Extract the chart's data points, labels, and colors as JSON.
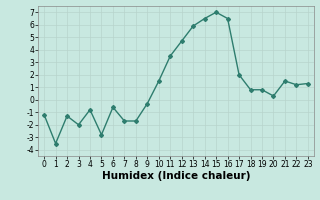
{
  "x": [
    0,
    1,
    2,
    3,
    4,
    5,
    6,
    7,
    8,
    9,
    10,
    11,
    12,
    13,
    14,
    15,
    16,
    17,
    18,
    19,
    20,
    21,
    22,
    23
  ],
  "y": [
    -1.2,
    -3.5,
    -1.3,
    -2.0,
    -0.8,
    -2.8,
    -0.6,
    -1.7,
    -1.7,
    -0.3,
    1.5,
    3.5,
    4.7,
    5.9,
    6.5,
    7.0,
    6.5,
    2.0,
    0.8,
    0.8,
    0.3,
    1.5,
    1.2,
    1.3
  ],
  "line_color": "#2e7d6e",
  "marker": "D",
  "marker_size": 2,
  "background_color": "#c8e8e0",
  "grid_color": "#b8d4cc",
  "xlabel": "Humidex (Indice chaleur)",
  "xlim": [
    -0.5,
    23.5
  ],
  "ylim": [
    -4.5,
    7.5
  ],
  "yticks": [
    -4,
    -3,
    -2,
    -1,
    0,
    1,
    2,
    3,
    4,
    5,
    6,
    7
  ],
  "xticks": [
    0,
    1,
    2,
    3,
    4,
    5,
    6,
    7,
    8,
    9,
    10,
    11,
    12,
    13,
    14,
    15,
    16,
    17,
    18,
    19,
    20,
    21,
    22,
    23
  ],
  "tick_fontsize": 5.5,
  "xlabel_fontsize": 7.5,
  "line_width": 1.0
}
